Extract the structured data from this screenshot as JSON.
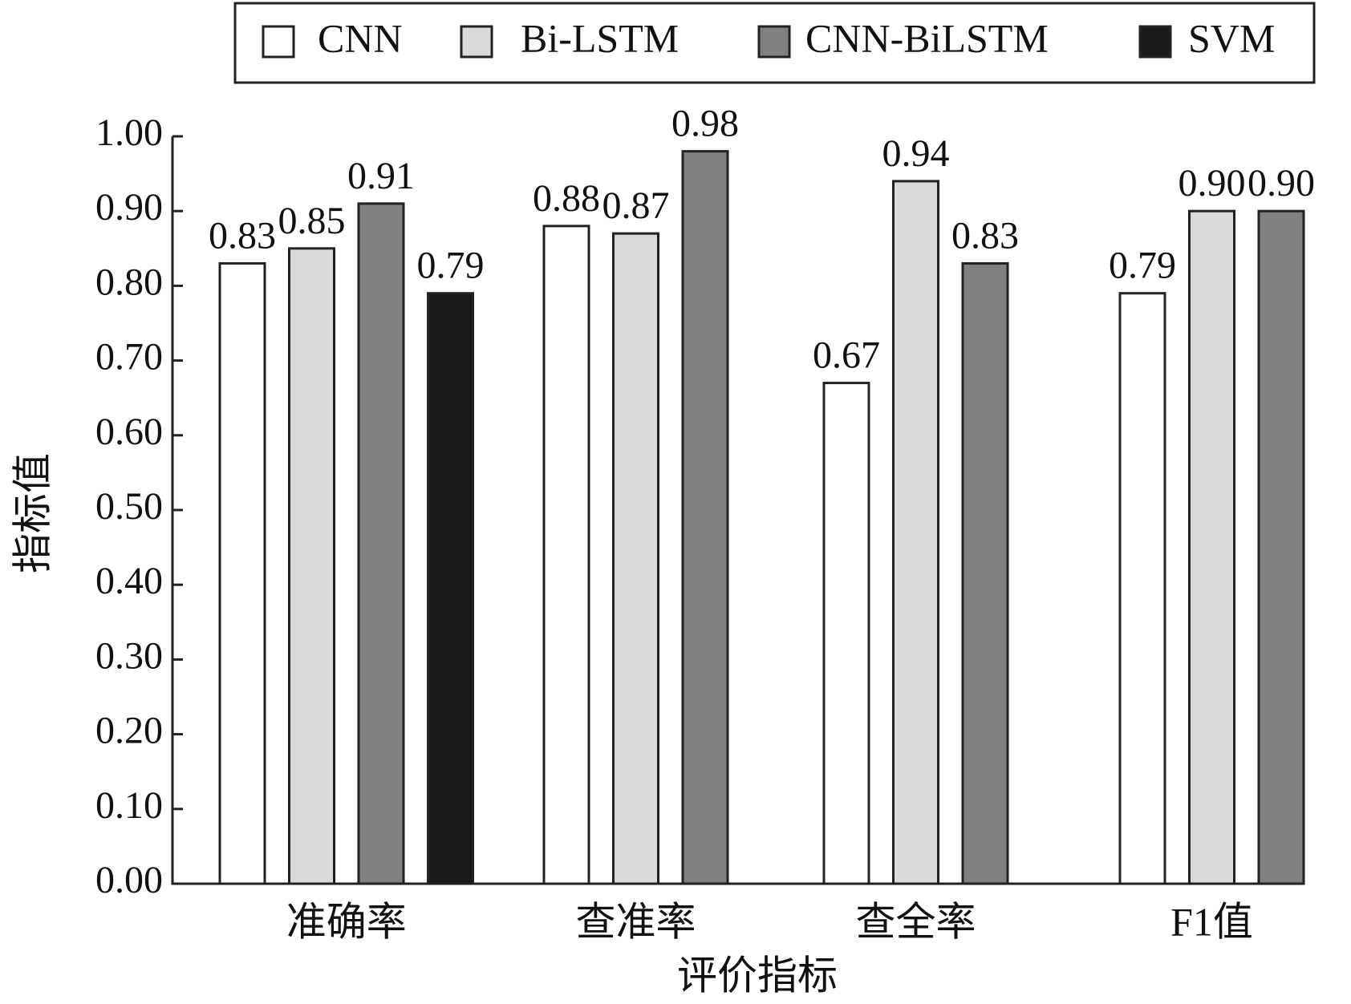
{
  "chart_data": {
    "type": "bar",
    "x_label": "评价指标",
    "y_label": "指标值",
    "categories": [
      "准确率",
      "查准率",
      "查全率",
      "F1值"
    ],
    "series": [
      {
        "name": "CNN",
        "color": "#ffffff",
        "values": [
          0.83,
          0.88,
          0.67,
          0.79
        ]
      },
      {
        "name": "Bi-LSTM",
        "color": "#d9d9d9",
        "values": [
          0.85,
          0.87,
          0.94,
          0.9
        ],
        "value_labels": [
          "0.85",
          "0.87",
          "0.94",
          "0.90"
        ]
      },
      {
        "name": "CNN-BiLSTM",
        "color": "#808080",
        "values": [
          0.91,
          0.98,
          0.83,
          0.9
        ],
        "value_labels": [
          "0.91",
          "0.98",
          "0.83",
          "0.90"
        ]
      },
      {
        "name": "SVM",
        "color": "#1a1a1a",
        "values": [
          0.79,
          null,
          null,
          null
        ]
      }
    ],
    "ylim": [
      0,
      1
    ],
    "yticks": [
      {
        "value": 0,
        "label": "0.00"
      },
      {
        "value": 0.1,
        "label": "0.10"
      },
      {
        "value": 0.2,
        "label": "0.20"
      },
      {
        "value": 0.3,
        "label": "0.30"
      },
      {
        "value": 0.4,
        "label": "0.40"
      },
      {
        "value": 0.5,
        "label": "0.50"
      },
      {
        "value": 0.6,
        "label": "0.60"
      },
      {
        "value": 0.7,
        "label": "0.70"
      },
      {
        "value": 0.8,
        "label": "0.80"
      },
      {
        "value": 0.9,
        "label": "0.90"
      },
      {
        "value": 1,
        "label": "1.00"
      }
    ],
    "grid": false,
    "legend": "top"
  }
}
